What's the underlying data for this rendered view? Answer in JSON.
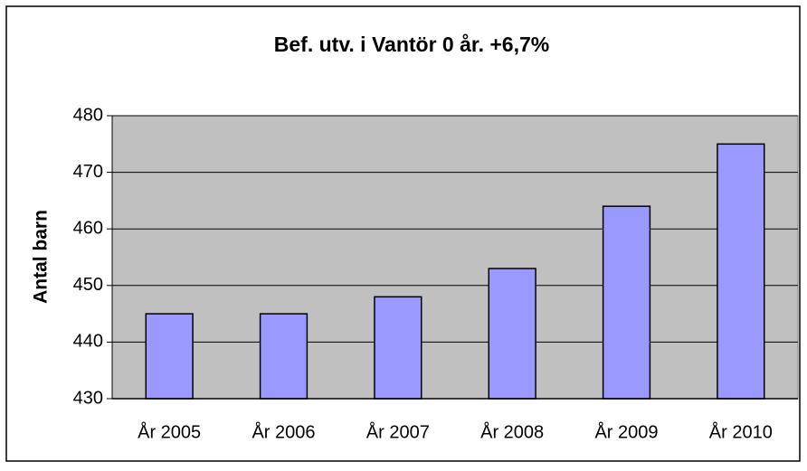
{
  "chart_data": {
    "type": "bar",
    "title": "Bef. utv. i Vantör 0 år. +6,7%",
    "y_label": "Antal barn",
    "categories": [
      "År 2005",
      "År 2006",
      "År 2007",
      "År 2008",
      "År 2009",
      "År 2010"
    ],
    "values": [
      445,
      445,
      448,
      453,
      464,
      475
    ],
    "color": "#9999ff",
    "ylim": [
      430,
      480
    ],
    "yticks": [
      430,
      440,
      450,
      460,
      470,
      480
    ],
    "grid": true
  }
}
